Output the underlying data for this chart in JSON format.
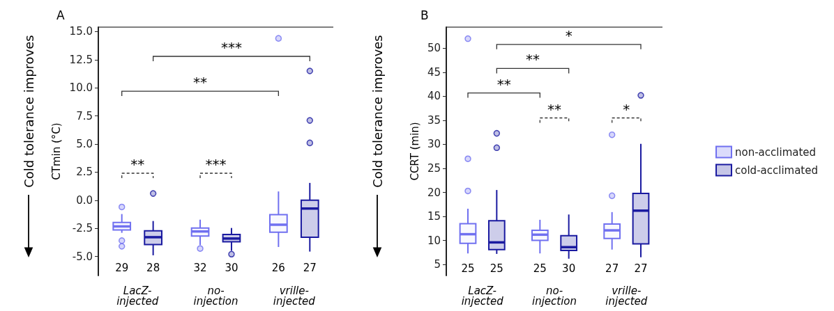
{
  "chart_data": [
    {
      "type": "box",
      "title": "A",
      "ylabel": "CTmin (°C)",
      "categories": [
        "LacZ-\ninjected",
        "no-\ninjection",
        "vrille-\ninjected"
      ],
      "ylim": [
        -6.7,
        15.4
      ],
      "yticks": [
        {
          "value": -5,
          "label": "-5.0"
        },
        -2.5,
        {
          "value": 0,
          "label": "0.0"
        },
        2.5,
        {
          "value": 5,
          "label": "5.0"
        },
        7.5,
        {
          "value": 10,
          "label": "10.0"
        },
        12.5,
        {
          "value": 15,
          "label": "15.0"
        }
      ],
      "series": [
        {
          "color": "#7070f0",
          "boxes": [
            {
              "low": -2.9,
              "q1": -2.65,
              "median": -2.33,
              "q3": -1.98,
              "high": -1.23,
              "outliers": [
                -0.6,
                -3.6,
                -4.1
              ]
            },
            {
              "low": -4.0,
              "q1": -3.19,
              "median": -2.78,
              "q3": -2.47,
              "high": -1.73,
              "outliers": [
                -4.3
              ]
            },
            {
              "low": -4.16,
              "q1": -2.84,
              "median": -2.18,
              "q3": -1.28,
              "high": 0.78,
              "outliers": [
                14.4
              ]
            }
          ]
        },
        {
          "color": "#1a1aa0",
          "boxes": [
            {
              "low": -4.9,
              "q1": -3.95,
              "median": -3.29,
              "q3": -2.72,
              "high": -1.85,
              "outliers": [
                0.6
              ]
            },
            {
              "low": -4.5,
              "q1": -3.7,
              "median": -3.41,
              "q3": -3.04,
              "high": -2.47,
              "outliers": [
                -4.8
              ]
            },
            {
              "low": -4.57,
              "q1": -3.29,
              "median": -0.74,
              "q3": 0.0,
              "high": 1.54,
              "outliers": [
                11.5,
                7.1,
                5.1
              ]
            }
          ]
        }
      ],
      "annotations": [
        "Cold tolerance improves",
        "***",
        "**",
        "**",
        "***",
        "29",
        "28",
        "32",
        "30",
        "26",
        "27"
      ],
      "grid": false,
      "legend": false
    },
    {
      "type": "box",
      "title": "B",
      "ylabel": "CCRT (min)",
      "categories": [
        "LacZ-\ninjected",
        "no-\ninjection",
        "vrille-\ninjected"
      ],
      "ylim": [
        2.7,
        54.4
      ],
      "yticks": [
        5,
        10,
        15,
        20,
        25,
        30,
        35,
        40,
        45,
        50
      ],
      "series": [
        {
          "name": "non-acclimated",
          "color": "#7070f0",
          "boxes": [
            {
              "low": 7.3,
              "q1": 9.4,
              "median": 11.3,
              "q3": 13.5,
              "high": 16.6,
              "outliers": [
                20.3,
                27,
                52
              ]
            },
            {
              "low": 7.3,
              "q1": 10.0,
              "median": 11.2,
              "q3": 12.1,
              "high": 14.3
            },
            {
              "low": 8.1,
              "q1": 10.4,
              "median": 12.1,
              "q3": 13.4,
              "high": 15.9,
              "outliers": [
                19.3,
                32
              ]
            }
          ]
        },
        {
          "name": "cold-acclimated",
          "color": "#1a1aa0",
          "boxes": [
            {
              "low": 7.2,
              "q1": 8.1,
              "median": 9.6,
              "q3": 14.1,
              "high": 20.5,
              "outliers": [
                29.3,
                32.3
              ]
            },
            {
              "low": 6.2,
              "q1": 7.9,
              "median": 8.6,
              "q3": 11.0,
              "high": 15.4
            },
            {
              "low": 6.5,
              "q1": 9.3,
              "median": 16.2,
              "q3": 19.8,
              "high": 30.1,
              "outliers": [
                40.2
              ]
            }
          ]
        }
      ],
      "annotations": [
        "Cold tolerance improves",
        "*",
        "**",
        "**",
        "**",
        "*",
        "25",
        "25",
        "25",
        "30",
        "27",
        "27"
      ],
      "grid": false,
      "legend": "right"
    }
  ]
}
